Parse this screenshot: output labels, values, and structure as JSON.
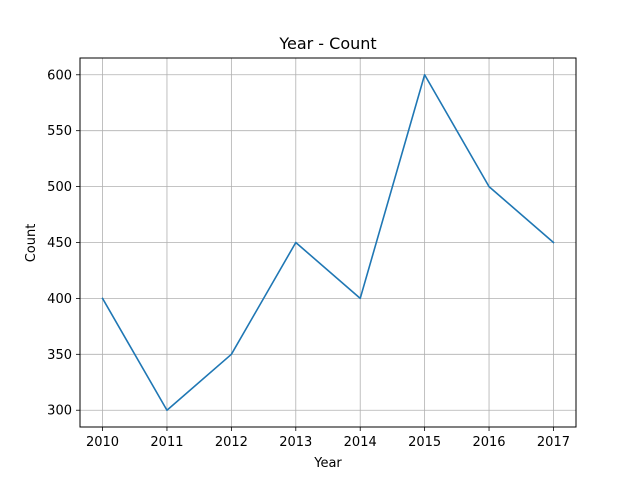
{
  "chart_data": {
    "type": "line",
    "title": "Year - Count",
    "xlabel": "Year",
    "ylabel": "Count",
    "x": [
      2010,
      2011,
      2012,
      2013,
      2014,
      2015,
      2016,
      2017
    ],
    "x_tick_labels": [
      "2010",
      "2011",
      "2012",
      "2013",
      "2014",
      "2015",
      "2016",
      "2017"
    ],
    "series": [
      {
        "values": [
          400,
          300,
          350,
          450,
          400,
          600,
          500,
          450
        ],
        "color": "#1f77b4"
      }
    ],
    "y_ticks": [
      300,
      350,
      400,
      450,
      500,
      550,
      600
    ],
    "y_tick_labels": [
      "300",
      "350",
      "400",
      "450",
      "500",
      "550",
      "600"
    ],
    "xlim": [
      2009.65,
      2017.35
    ],
    "ylim": [
      285,
      615
    ],
    "grid": true,
    "grid_color": "#b0b0b0",
    "legend": "none"
  }
}
